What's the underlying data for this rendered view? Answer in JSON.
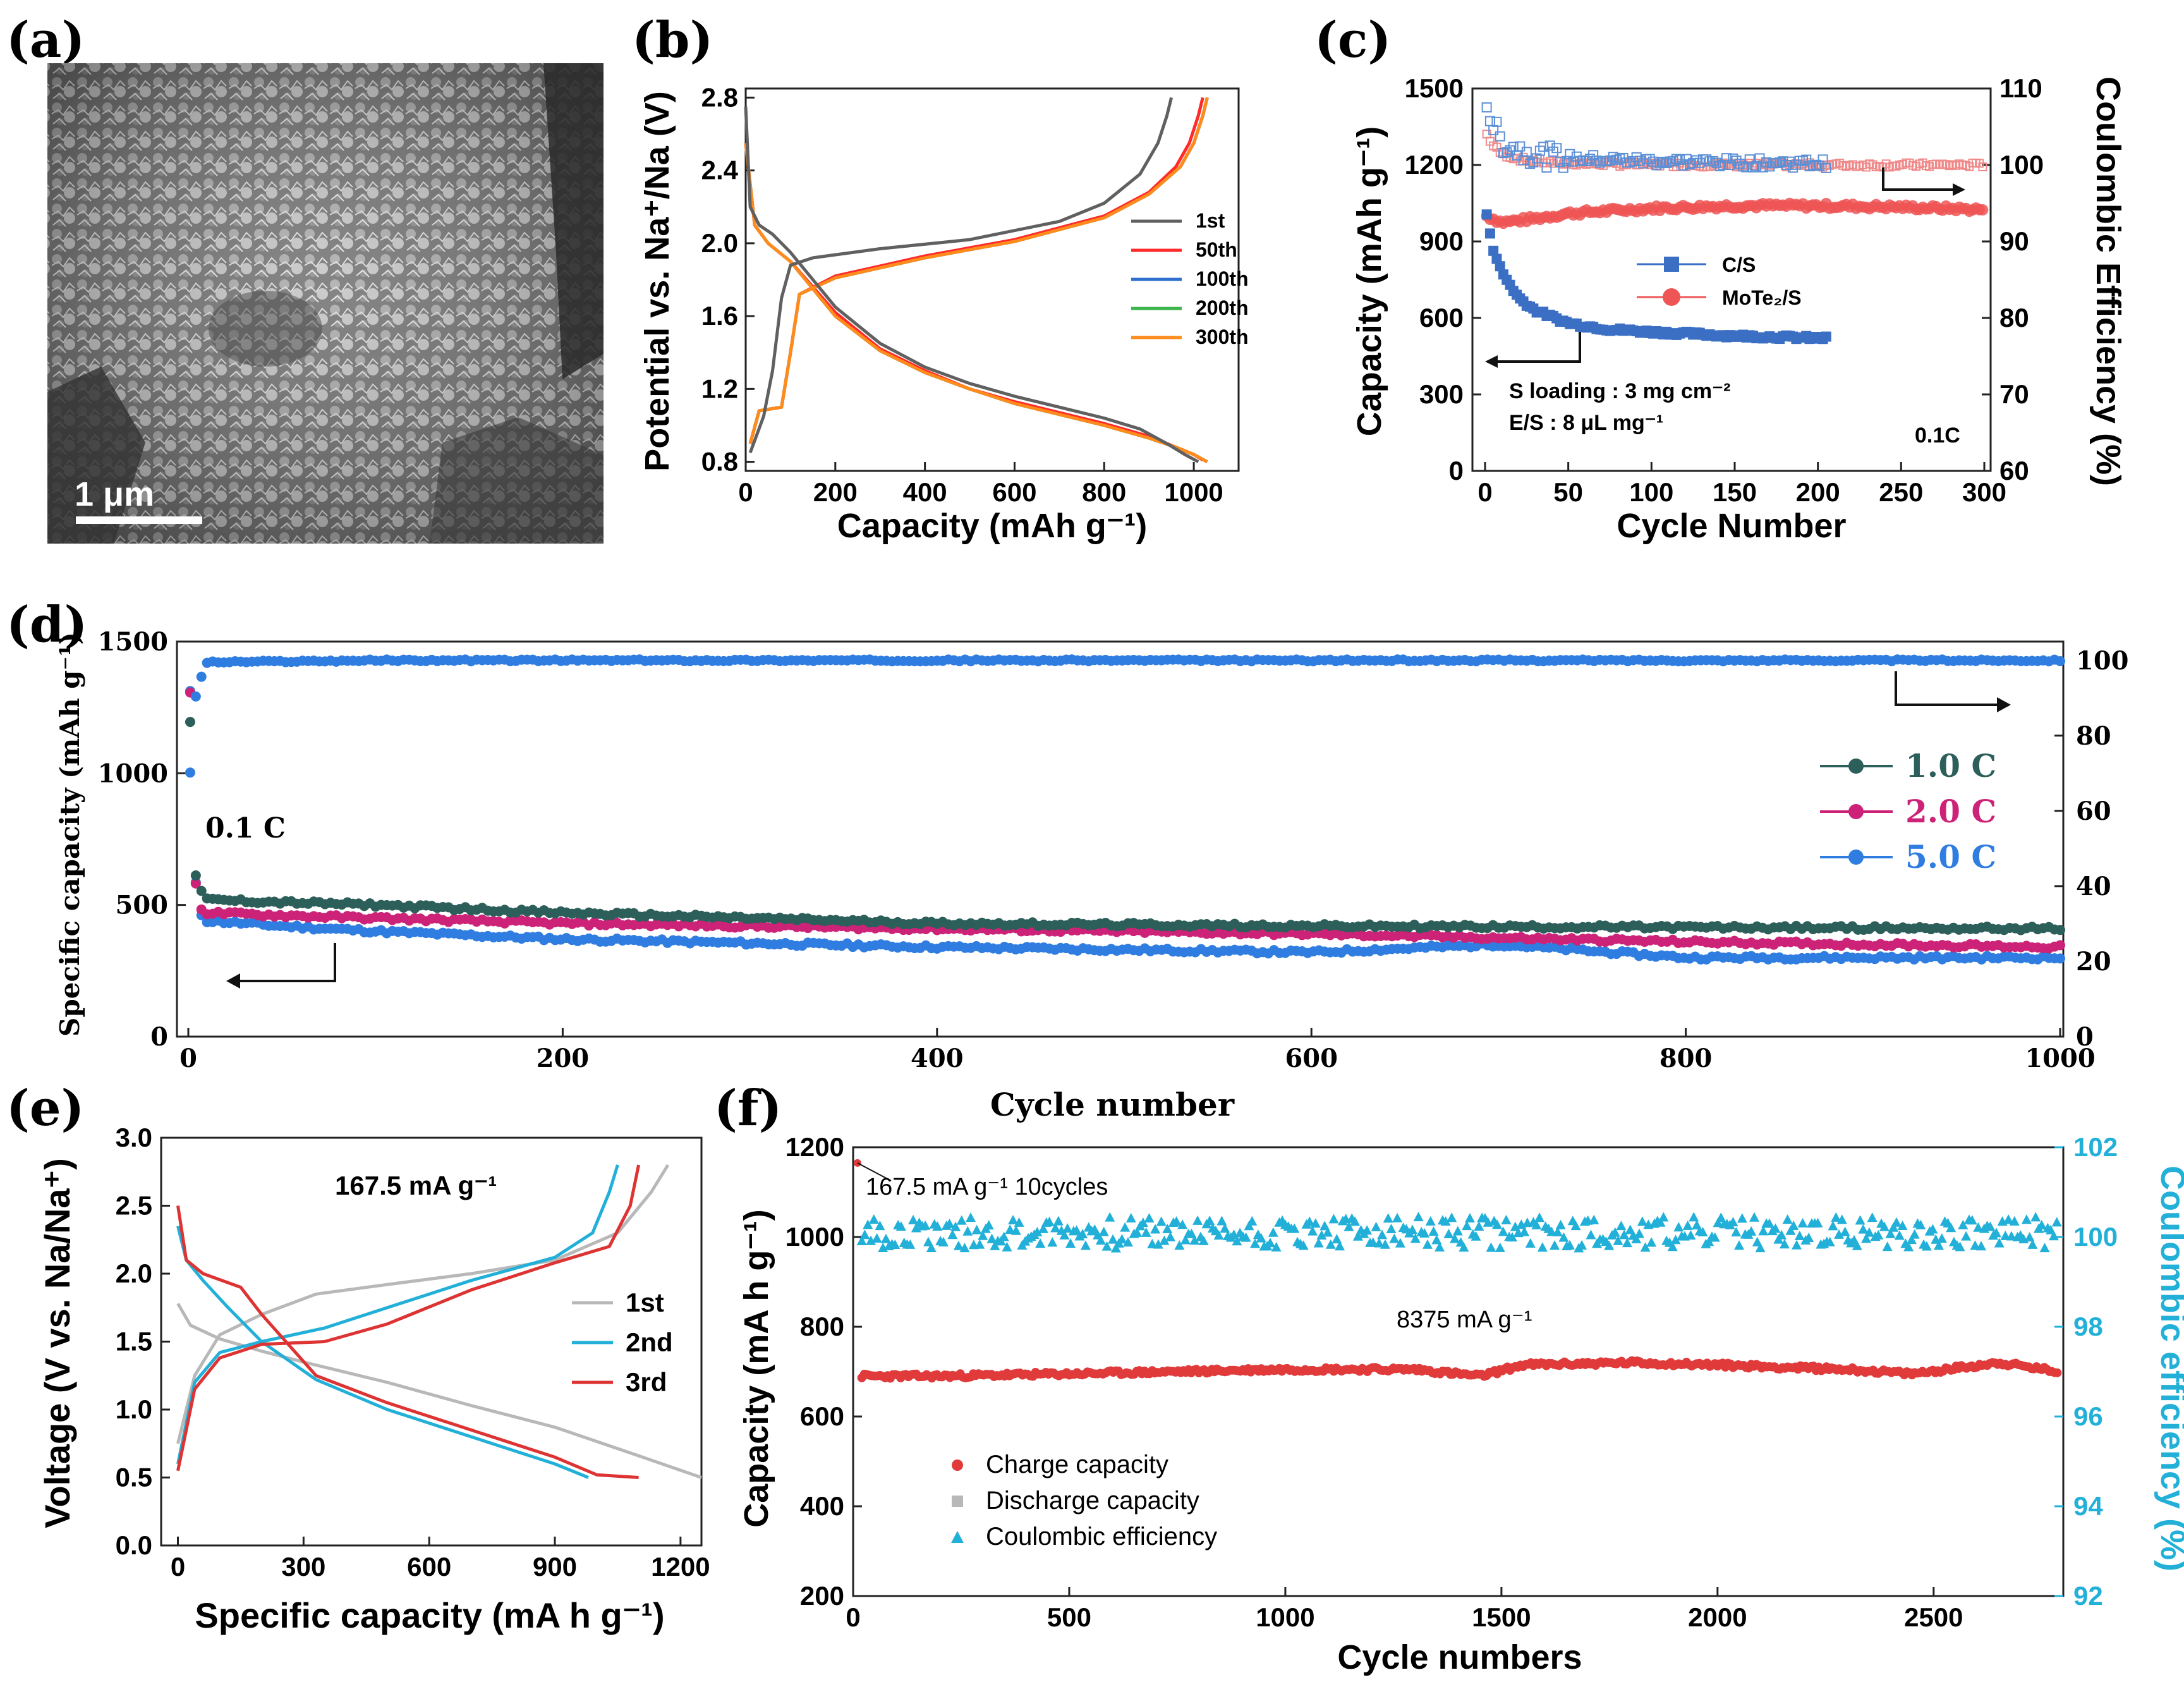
{
  "figure": {
    "panels": [
      "(a)",
      "(b)",
      "(c)",
      "(d)",
      "(e)",
      "(f)"
    ]
  },
  "chart_data": [
    {
      "panel": "(a)",
      "type": "image",
      "description_label": "SEM micrograph",
      "scale_bar": "1 μm"
    },
    {
      "panel": "(b)",
      "type": "line",
      "xlabel": "Capacity (mAh g⁻¹)",
      "ylabel": "Potential vs. Na⁺/Na (V)",
      "xlim": [
        0,
        1100
      ],
      "ylim": [
        0.75,
        2.85
      ],
      "xticks": [
        0,
        200,
        400,
        600,
        800,
        1000
      ],
      "yticks": [
        0.8,
        1.2,
        1.6,
        2.0,
        2.4,
        2.8
      ],
      "legend": [
        "1st",
        "50th",
        "100th",
        "200th",
        "300th"
      ],
      "colors": [
        "#606060",
        "#ff2b2b",
        "#2e6fcf",
        "#3cb44b",
        "#ff8c1a"
      ],
      "series": [
        {
          "name": "1st",
          "discharge": {
            "x": [
              0,
              10,
              30,
              60,
              100,
              200,
              300,
              400,
              500,
              600,
              700,
              800,
              880,
              940,
              980,
              1010
            ],
            "y": [
              2.75,
              2.2,
              2.1,
              2.05,
              1.95,
              1.65,
              1.45,
              1.32,
              1.23,
              1.16,
              1.1,
              1.04,
              0.98,
              0.9,
              0.84,
              0.8
            ]
          },
          "charge": {
            "x": [
              10,
              40,
              60,
              80,
              100,
              150,
              300,
              500,
              700,
              800,
              880,
              920,
              940,
              950
            ],
            "y": [
              0.85,
              1.05,
              1.3,
              1.7,
              1.88,
              1.92,
              1.97,
              2.02,
              2.12,
              2.22,
              2.38,
              2.55,
              2.7,
              2.8
            ]
          }
        },
        {
          "name": "50th",
          "discharge": {
            "x": [
              0,
              20,
              50,
              100,
              200,
              300,
              400,
              500,
              600,
              700,
              800,
              900,
              960,
              1000,
              1020
            ],
            "y": [
              2.55,
              2.1,
              2.0,
              1.9,
              1.62,
              1.42,
              1.3,
              1.2,
              1.13,
              1.07,
              1.01,
              0.94,
              0.88,
              0.84,
              0.81
            ]
          },
          "charge": {
            "x": [
              10,
              30,
              80,
              100,
              120,
              200,
              400,
              600,
              800,
              900,
              960,
              990,
              1010,
              1020
            ],
            "y": [
              0.9,
              1.08,
              1.1,
              1.4,
              1.72,
              1.82,
              1.93,
              2.02,
              2.15,
              2.28,
              2.42,
              2.55,
              2.7,
              2.8
            ]
          }
        },
        {
          "name": "100th",
          "discharge": {
            "x": [
              0,
              20,
              50,
              100,
              200,
              300,
              400,
              500,
              600,
              700,
              800,
              900,
              960,
              1000,
              1030
            ],
            "y": [
              2.55,
              2.1,
              2.0,
              1.9,
              1.6,
              1.41,
              1.29,
              1.2,
              1.12,
              1.06,
              1.0,
              0.93,
              0.88,
              0.84,
              0.8
            ]
          },
          "charge": {
            "x": [
              10,
              30,
              80,
              100,
              120,
              200,
              400,
              600,
              800,
              900,
              970,
              1000,
              1020,
              1030
            ],
            "y": [
              0.9,
              1.08,
              1.1,
              1.4,
              1.72,
              1.81,
              1.92,
              2.01,
              2.14,
              2.27,
              2.42,
              2.55,
              2.7,
              2.8
            ]
          }
        },
        {
          "name": "200th",
          "discharge": {
            "x": [
              0,
              20,
              50,
              100,
              200,
              300,
              400,
              500,
              600,
              700,
              800,
              900,
              960,
              1000,
              1030
            ],
            "y": [
              2.55,
              2.1,
              2.0,
              1.9,
              1.6,
              1.41,
              1.29,
              1.2,
              1.12,
              1.06,
              1.0,
              0.93,
              0.88,
              0.84,
              0.8
            ]
          },
          "charge": {
            "x": [
              10,
              30,
              80,
              100,
              120,
              200,
              400,
              600,
              800,
              900,
              970,
              1000,
              1020,
              1030
            ],
            "y": [
              0.9,
              1.08,
              1.1,
              1.4,
              1.72,
              1.81,
              1.92,
              2.01,
              2.14,
              2.27,
              2.42,
              2.55,
              2.7,
              2.8
            ]
          }
        },
        {
          "name": "300th",
          "discharge": {
            "x": [
              0,
              20,
              50,
              100,
              200,
              300,
              400,
              500,
              600,
              700,
              800,
              900,
              960,
              1000,
              1030
            ],
            "y": [
              2.55,
              2.1,
              2.0,
              1.9,
              1.6,
              1.41,
              1.29,
              1.2,
              1.12,
              1.06,
              1.0,
              0.93,
              0.88,
              0.84,
              0.8
            ]
          },
          "charge": {
            "x": [
              10,
              30,
              80,
              100,
              120,
              200,
              400,
              600,
              800,
              900,
              970,
              1000,
              1020,
              1030
            ],
            "y": [
              0.9,
              1.08,
              1.1,
              1.4,
              1.72,
              1.81,
              1.92,
              2.01,
              2.14,
              2.27,
              2.42,
              2.55,
              2.7,
              2.8
            ]
          }
        }
      ]
    },
    {
      "panel": "(c)",
      "type": "scatter",
      "xlabel": "Cycle Number",
      "ylabel": "Capacity (mAh g⁻¹)",
      "ylabel_right": "Coulombic Efficiency (%)",
      "xlim": [
        0,
        300
      ],
      "ylim": [
        0,
        1500
      ],
      "ylim_right": [
        60,
        110
      ],
      "xticks": [
        0,
        50,
        100,
        150,
        200,
        250,
        300
      ],
      "yticks": [
        0,
        300,
        600,
        900,
        1200,
        1500
      ],
      "yticks_right": [
        60,
        70,
        80,
        90,
        100,
        110
      ],
      "legend": [
        "C/S",
        "MoTe₂/S"
      ],
      "colors": {
        "C/S": "#3a6fc4",
        "MoTe₂/S": "#ee5555"
      },
      "annotations": [
        "S loading : 3 mg cm⁻²",
        "E/S : 8 μL mg⁻¹",
        "0.1C"
      ],
      "series": [
        {
          "name": "C/S capacity",
          "x": [
            1,
            5,
            10,
            20,
            30,
            50,
            75,
            100,
            150,
            205
          ],
          "y": [
            1000,
            870,
            780,
            680,
            630,
            580,
            555,
            545,
            530,
            520
          ]
        },
        {
          "name": "MoTe₂/S capacity",
          "x": [
            1,
            10,
            30,
            50,
            100,
            150,
            200,
            250,
            300
          ],
          "y": [
            1000,
            975,
            990,
            1010,
            1030,
            1040,
            1040,
            1035,
            1025
          ]
        },
        {
          "name": "C/S efficiency",
          "x": [
            1,
            5,
            10,
            20,
            30,
            40,
            60,
            100,
            150,
            205
          ],
          "y": [
            108,
            105,
            103,
            102,
            101.5,
            101,
            100.8,
            100.5,
            100.3,
            100.2
          ]
        },
        {
          "name": "MoTe₂/S efficiency",
          "x": [
            1,
            5,
            10,
            20,
            40,
            80,
            150,
            200,
            250,
            300
          ],
          "y": [
            104,
            102.5,
            101.5,
            100.8,
            100.3,
            100.1,
            100,
            100,
            100,
            100
          ]
        }
      ]
    },
    {
      "panel": "(d)",
      "type": "scatter",
      "xlabel": "Cycle number",
      "ylabel": "Specific capacity (mAh g⁻¹)",
      "xlim": [
        0,
        1000
      ],
      "ylim": [
        0,
        1500
      ],
      "ylim_right": [
        0,
        105
      ],
      "xticks": [
        0,
        200,
        400,
        600,
        800,
        1000
      ],
      "yticks": [
        0,
        500,
        1000,
        1500
      ],
      "yticks_right": [
        0,
        20,
        40,
        60,
        80,
        100
      ],
      "legend": [
        "1.0 C",
        "2.0 C",
        "5.0 C"
      ],
      "colors": {
        "1.0 C": "#2c5e5a",
        "2.0 C": "#cc2277",
        "5.0 C": "#2f7de0"
      },
      "annotations": [
        "0.1 C"
      ],
      "series": [
        {
          "name": "1.0 C",
          "x": [
            1,
            3,
            5,
            10,
            50,
            100,
            200,
            400,
            600,
            800,
            1000
          ],
          "y": [
            1200,
            650,
            570,
            520,
            510,
            500,
            470,
            430,
            420,
            415,
            410
          ]
        },
        {
          "name": "2.0 C",
          "x": [
            1,
            3,
            5,
            10,
            50,
            100,
            200,
            400,
            600,
            800,
            1000
          ],
          "y": [
            1300,
            660,
            500,
            470,
            460,
            450,
            430,
            410,
            390,
            360,
            340
          ]
        },
        {
          "name": "5.0 C",
          "x": [
            1,
            3,
            5,
            10,
            50,
            100,
            200,
            400,
            600,
            700,
            800,
            1000
          ],
          "y": [
            1310,
            680,
            480,
            440,
            420,
            400,
            370,
            340,
            320,
            350,
            300,
            300
          ]
        },
        {
          "name": "Coulombic efficiency",
          "x": [
            1,
            3,
            5,
            10,
            100,
            500,
            1000
          ],
          "y": [
            70,
            88,
            93,
            99.5,
            100,
            100,
            100
          ]
        }
      ]
    },
    {
      "panel": "(e)",
      "type": "line",
      "xlabel": "Specific capacity (mA h g⁻¹)",
      "ylabel": "Voltage (V vs. Na/Na⁺)",
      "xlim": [
        -40,
        1250
      ],
      "ylim": [
        0,
        3
      ],
      "xticks": [
        0,
        300,
        600,
        900,
        1200
      ],
      "yticks": [
        0.0,
        0.5,
        1.0,
        1.5,
        2.0,
        2.5,
        3.0
      ],
      "legend": [
        "1st",
        "2nd",
        "3rd"
      ],
      "colors": [
        "#b8b8b8",
        "#22b0d8",
        "#dd3333"
      ],
      "annotations": [
        "167.5 mA g⁻¹"
      ],
      "series": [
        {
          "name": "1st",
          "discharge": {
            "x": [
              0,
              30,
              100,
              200,
              300,
              500,
              700,
              900,
              1100,
              1250
            ],
            "y": [
              1.78,
              1.62,
              1.52,
              1.43,
              1.35,
              1.2,
              1.03,
              0.87,
              0.66,
              0.5
            ]
          },
          "charge": {
            "x": [
              0,
              40,
              100,
              200,
              330,
              500,
              700,
              900,
              1050,
              1130,
              1170
            ],
            "y": [
              0.75,
              1.25,
              1.55,
              1.7,
              1.85,
              1.92,
              2.0,
              2.1,
              2.3,
              2.6,
              2.8
            ]
          }
        },
        {
          "name": "2nd",
          "discharge": {
            "x": [
              0,
              20,
              60,
              120,
              200,
              330,
              500,
              700,
              900,
              980
            ],
            "y": [
              2.35,
              2.1,
              1.95,
              1.75,
              1.5,
              1.22,
              1.0,
              0.8,
              0.6,
              0.5
            ]
          },
          "charge": {
            "x": [
              0,
              40,
              100,
              200,
              350,
              500,
              700,
              900,
              990,
              1030,
              1050
            ],
            "y": [
              0.6,
              1.2,
              1.42,
              1.5,
              1.6,
              1.75,
              1.95,
              2.12,
              2.3,
              2.6,
              2.8
            ]
          }
        },
        {
          "name": "3rd",
          "discharge": {
            "x": [
              0,
              20,
              60,
              150,
              200,
              330,
              500,
              700,
              900,
              1000,
              1100
            ],
            "y": [
              2.5,
              2.1,
              2.0,
              1.9,
              1.7,
              1.25,
              1.05,
              0.85,
              0.65,
              0.52,
              0.5
            ]
          },
          "charge": {
            "x": [
              0,
              40,
              100,
              200,
              350,
              500,
              700,
              900,
              1030,
              1080,
              1100
            ],
            "y": [
              0.55,
              1.15,
              1.38,
              1.48,
              1.5,
              1.63,
              1.88,
              2.08,
              2.2,
              2.5,
              2.8
            ]
          }
        }
      ]
    },
    {
      "panel": "(f)",
      "type": "scatter",
      "xlabel": "Cycle numbers",
      "ylabel": "Capacity (mA h g⁻¹)",
      "ylabel_right": "Coulombic efficiency (%)",
      "xlim": [
        0,
        2800
      ],
      "ylim": [
        200,
        1200
      ],
      "ylim_right": [
        92,
        102
      ],
      "xticks": [
        0,
        500,
        1000,
        1500,
        2000,
        2500
      ],
      "yticks": [
        200,
        400,
        600,
        800,
        1000,
        1200
      ],
      "yticks_right": [
        92,
        94,
        96,
        98,
        100,
        102
      ],
      "legend": [
        "Charge  capacity",
        "Discharge capacity",
        "Coulombic efficiency"
      ],
      "colors": {
        "charge": "#e03a3a",
        "discharge": "#b8b8b8",
        "efficiency": "#22b0d8"
      },
      "annotations": [
        "167.5 mA g⁻¹ 10cycles",
        "8375 mA g⁻¹"
      ],
      "series": [
        {
          "name": "Charge  capacity",
          "x": [
            10,
            200,
            500,
            1000,
            1300,
            1450,
            1550,
            1800,
            2000,
            2300,
            2450,
            2650,
            2790
          ],
          "y": [
            690,
            690,
            695,
            705,
            705,
            690,
            715,
            720,
            715,
            705,
            695,
            720,
            700
          ]
        },
        {
          "name": "Coulombic efficiency",
          "x": [
            10,
            500,
            1000,
            1500,
            2000,
            2500,
            2790
          ],
          "y": [
            100.1,
            100.1,
            100.1,
            100.1,
            100.1,
            100.1,
            100.1
          ]
        }
      ]
    }
  ]
}
